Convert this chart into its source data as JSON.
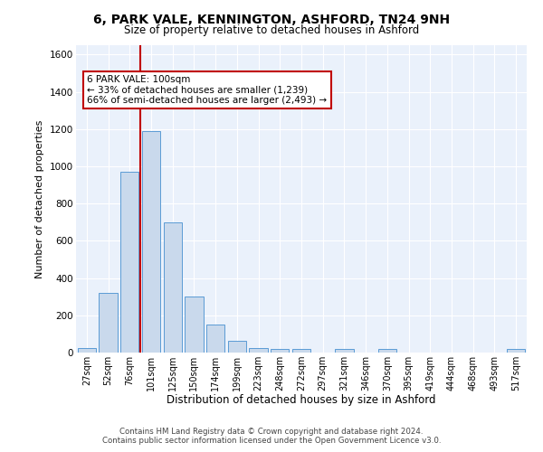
{
  "title1": "6, PARK VALE, KENNINGTON, ASHFORD, TN24 9NH",
  "title2": "Size of property relative to detached houses in Ashford",
  "xlabel": "Distribution of detached houses by size in Ashford",
  "ylabel": "Number of detached properties",
  "categories": [
    "27sqm",
    "52sqm",
    "76sqm",
    "101sqm",
    "125sqm",
    "150sqm",
    "174sqm",
    "199sqm",
    "223sqm",
    "248sqm",
    "272sqm",
    "297sqm",
    "321sqm",
    "346sqm",
    "370sqm",
    "395sqm",
    "419sqm",
    "444sqm",
    "468sqm",
    "493sqm",
    "517sqm"
  ],
  "values": [
    25,
    320,
    970,
    1190,
    700,
    300,
    150,
    65,
    25,
    20,
    20,
    0,
    20,
    0,
    20,
    0,
    0,
    0,
    0,
    0,
    20
  ],
  "bar_color": "#c9d9ec",
  "bar_edge_color": "#5b9bd5",
  "vline_color": "#c00000",
  "vline_index": 3,
  "annotation_text": "6 PARK VALE: 100sqm\n← 33% of detached houses are smaller (1,239)\n66% of semi-detached houses are larger (2,493) →",
  "annotation_box_color": "#ffffff",
  "annotation_box_edge": "#c00000",
  "ylim": [
    0,
    1650
  ],
  "yticks": [
    0,
    200,
    400,
    600,
    800,
    1000,
    1200,
    1400,
    1600
  ],
  "bg_color": "#eaf1fb",
  "footer1": "Contains HM Land Registry data © Crown copyright and database right 2024.",
  "footer2": "Contains public sector information licensed under the Open Government Licence v3.0."
}
